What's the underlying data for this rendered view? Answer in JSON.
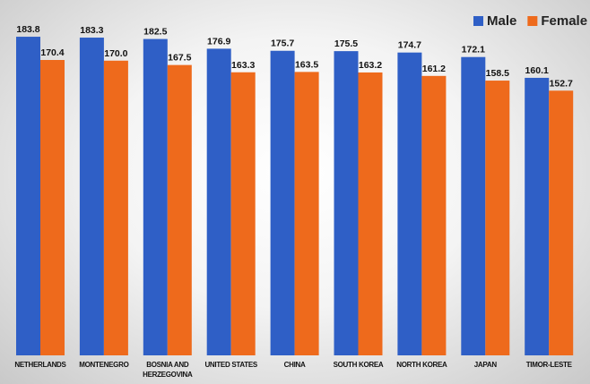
{
  "chart_data": {
    "type": "bar",
    "categories": [
      "NETHERLANDS",
      "MONTENEGRO",
      "BOSNIA AND HERZEGOVINA",
      "UNITED STATES",
      "CHINA",
      "SOUTH KOREA",
      "NORTH KOREA",
      "JAPAN",
      "TIMOR-LESTE"
    ],
    "series": [
      {
        "name": "Male",
        "color": "#2f5fc6",
        "values": [
          183.8,
          183.3,
          182.5,
          176.9,
          175.7,
          175.5,
          174.7,
          172.1,
          160.1
        ],
        "value_labels": [
          "183.8",
          "183.3",
          "182.5",
          "176.9",
          "175.7",
          "175.5",
          "174.7",
          "172.1",
          "160.1"
        ]
      },
      {
        "name": "Female",
        "color": "#ee6a1c",
        "values": [
          170.4,
          170.0,
          167.5,
          163.3,
          163.5,
          163.2,
          161.2,
          158.5,
          152.7
        ],
        "value_labels": [
          "170.4",
          "170.0",
          "167.5",
          "163.3",
          "163.5",
          "163.2",
          "161.2",
          "158.5",
          "152.7"
        ]
      }
    ],
    "ylim": [
      0,
      205
    ],
    "legend": "top-right"
  }
}
